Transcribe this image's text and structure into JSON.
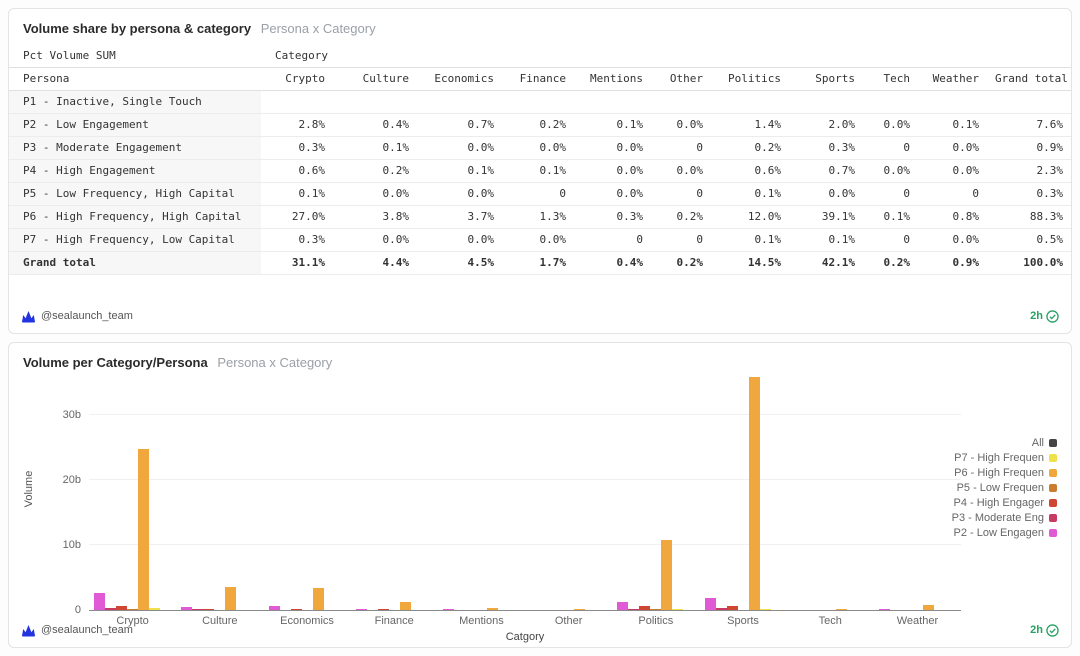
{
  "colors": {
    "accent_green": "#27a163",
    "logo_blue": "#2433e0",
    "grid": "#f0f0f0"
  },
  "panel1": {
    "title": "Volume share by persona & category",
    "subtitle": "Persona x Category",
    "measure_label": "Pct Volume SUM",
    "category_group_label": "Category",
    "persona_label": "Persona",
    "columns": [
      "Crypto",
      "Culture",
      "Economics",
      "Finance",
      "Mentions",
      "Other",
      "Politics",
      "Sports",
      "Tech",
      "Weather",
      "Grand total"
    ],
    "rows": [
      {
        "persona": "P1 - Inactive, Single Touch",
        "total": false,
        "values": [
          "",
          "",
          "",
          "",
          "",
          "",
          "",
          "",
          "",
          "",
          ""
        ]
      },
      {
        "persona": "P2 - Low Engagement",
        "total": false,
        "values": [
          "2.8%",
          "0.4%",
          "0.7%",
          "0.2%",
          "0.1%",
          "0.0%",
          "1.4%",
          "2.0%",
          "0.0%",
          "0.1%",
          "7.6%"
        ]
      },
      {
        "persona": "P3 - Moderate Engagement",
        "total": false,
        "values": [
          "0.3%",
          "0.1%",
          "0.0%",
          "0.0%",
          "0.0%",
          "0",
          "0.2%",
          "0.3%",
          "0",
          "0.0%",
          "0.9%"
        ]
      },
      {
        "persona": "P4 - High Engagement",
        "total": false,
        "values": [
          "0.6%",
          "0.2%",
          "0.1%",
          "0.1%",
          "0.0%",
          "0.0%",
          "0.6%",
          "0.7%",
          "0.0%",
          "0.0%",
          "2.3%"
        ]
      },
      {
        "persona": "P5 - Low Frequency, High Capital",
        "total": false,
        "values": [
          "0.1%",
          "0.0%",
          "0.0%",
          "0",
          "0.0%",
          "0",
          "0.1%",
          "0.0%",
          "0",
          "0",
          "0.3%"
        ]
      },
      {
        "persona": "P6 - High Frequency, High Capital",
        "total": false,
        "values": [
          "27.0%",
          "3.8%",
          "3.7%",
          "1.3%",
          "0.3%",
          "0.2%",
          "12.0%",
          "39.1%",
          "0.1%",
          "0.8%",
          "88.3%"
        ]
      },
      {
        "persona": "P7 - High Frequency, Low Capital",
        "total": false,
        "values": [
          "0.3%",
          "0.0%",
          "0.0%",
          "0.0%",
          "0",
          "0",
          "0.1%",
          "0.1%",
          "0",
          "0.0%",
          "0.5%"
        ]
      },
      {
        "persona": "Grand total",
        "total": true,
        "values": [
          "31.1%",
          "4.4%",
          "4.5%",
          "1.7%",
          "0.4%",
          "0.2%",
          "14.5%",
          "42.1%",
          "0.2%",
          "0.9%",
          "100.0%"
        ]
      }
    ],
    "footer": {
      "author": "@sealaunch_team",
      "timestamp": "2h"
    }
  },
  "panel2": {
    "title": "Volume per Category/Persona",
    "subtitle": "Persona x Category",
    "footer": {
      "author": "@sealaunch_team",
      "timestamp": "2h"
    }
  },
  "chart_data": {
    "type": "bar",
    "title": "Volume per Category/Persona",
    "xlabel": "Catgory",
    "ylabel": "Volume",
    "ylim": [
      0,
      37
    ],
    "yticks": [
      {
        "value": 0,
        "label": "0"
      },
      {
        "value": 10,
        "label": "10b"
      },
      {
        "value": 20,
        "label": "20b"
      },
      {
        "value": 30,
        "label": "30b"
      }
    ],
    "unit": "billions",
    "grid": true,
    "legend_position": "right",
    "categories": [
      "Crypto",
      "Culture",
      "Economics",
      "Finance",
      "Mentions",
      "Other",
      "Politics",
      "Sports",
      "Tech",
      "Weather"
    ],
    "series": [
      {
        "name": "P2 - Low Engagement",
        "legend_label": "P2 - Low Engagen",
        "color": "#e05ad5",
        "values": [
          2.6,
          0.45,
          0.6,
          0.2,
          0.1,
          0.05,
          1.3,
          1.8,
          0.03,
          0.1
        ]
      },
      {
        "name": "P3 - Moderate Engagement",
        "legend_label": "P3 - Moderate Eng",
        "color": "#c93a63",
        "values": [
          0.3,
          0.1,
          0.05,
          0.03,
          0.02,
          0.01,
          0.2,
          0.3,
          0.01,
          0.03
        ]
      },
      {
        "name": "P4 - High Engagement",
        "legend_label": "P4 - High Engager",
        "color": "#cf4632",
        "values": [
          0.6,
          0.2,
          0.1,
          0.1,
          0.04,
          0.02,
          0.55,
          0.65,
          0.02,
          0.04
        ]
      },
      {
        "name": "P5 - Low Frequency, High Capital",
        "legend_label": "P5 - Low Frequen",
        "color": "#cb7c30",
        "values": [
          0.1,
          0.03,
          0.02,
          0,
          0.01,
          0,
          0.1,
          0.04,
          0,
          0
        ]
      },
      {
        "name": "P6 - High Frequency, High Capital",
        "legend_label": "P6 - High Frequen",
        "color": "#efa73e",
        "values": [
          24.8,
          3.5,
          3.4,
          1.2,
          0.3,
          0.2,
          10.8,
          35.8,
          0.1,
          0.75
        ]
      },
      {
        "name": "P7 - High Frequency, Low Capital",
        "legend_label": "P7 - High Frequen",
        "color": "#ede24b",
        "values": [
          0.3,
          0.03,
          0.03,
          0.02,
          0,
          0,
          0.1,
          0.1,
          0,
          0.03
        ]
      },
      {
        "name": "All",
        "legend_label": "All",
        "color": "#454545",
        "values": [
          0,
          0,
          0,
          0,
          0,
          0,
          0,
          0,
          0,
          0
        ]
      }
    ],
    "legend_top_to_bottom": [
      "All",
      "P7 - High Frequen",
      "P6 - High Frequen",
      "P5 - Low Frequen",
      "P4 - High Engager",
      "P3 - Moderate Eng",
      "P2 - Low Engagen"
    ]
  }
}
